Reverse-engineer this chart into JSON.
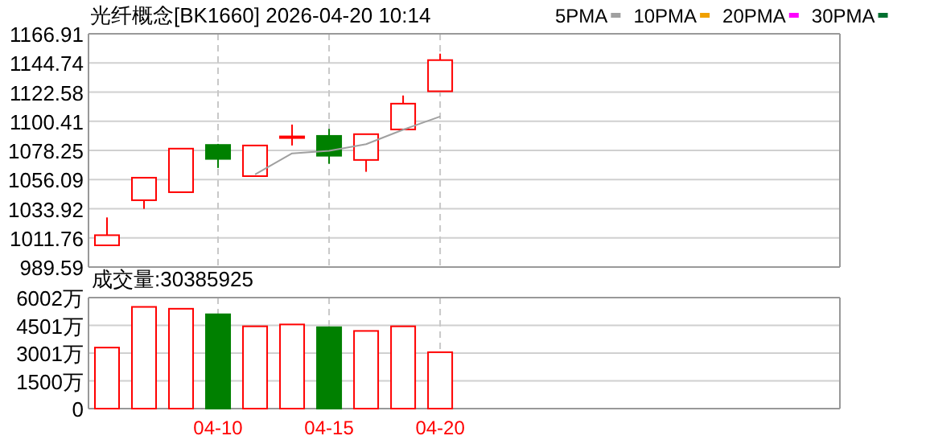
{
  "chart_data": [
    {
      "type": "candlestick",
      "title": "光纤概念[BK1660] 2026-04-20 10:14",
      "categories": [
        null,
        null,
        null,
        null,
        null,
        null,
        null,
        null,
        null,
        null
      ],
      "ohlc": [
        [
          1006.1,
          1027.3,
          1006.1,
          1013.8
        ],
        [
          1040.4,
          1057.5,
          1033.8,
          1057.5
        ],
        [
          1046.5,
          1079.6,
          1046.5,
          1079.6
        ],
        [
          1082.4,
          1083.2,
          1064.9,
          1071.8
        ],
        [
          1058.7,
          1082.0,
          1058.7,
          1082.0
        ],
        [
          1088.1,
          1097.9,
          1082.0,
          1088.9
        ],
        [
          1089.3,
          1094.6,
          1068.1,
          1074.2
        ],
        [
          1071.0,
          1090.6,
          1062.0,
          1090.6
        ],
        [
          1094.2,
          1120.0,
          1094.2,
          1113.8
        ],
        [
          1123.2,
          1151.8,
          1123.2,
          1146.9
        ]
      ],
      "colors": [
        "#ff0000",
        "#ff0000",
        "#ff0000",
        "#008000",
        "#ff0000",
        "#ff0000",
        "#008000",
        "#ff0000",
        "#ff0000",
        "#ff0000"
      ],
      "series": [
        {
          "name": "5PMA",
          "type": "line",
          "color": "#a0a0a0",
          "values": [
            null,
            null,
            null,
            null,
            1060,
            1076,
            1078,
            1083,
            1094,
            1104
          ]
        },
        {
          "name": "10PMA",
          "type": "line",
          "color": "#f0a000",
          "values": [
            null,
            null,
            null,
            null,
            null,
            null,
            null,
            null,
            null,
            null
          ]
        },
        {
          "name": "20PMA",
          "type": "line",
          "color": "#ff00ff",
          "values": [
            null,
            null,
            null,
            null,
            null,
            null,
            null,
            null,
            null,
            null
          ]
        },
        {
          "name": "30PMA",
          "type": "line",
          "color": "#007030",
          "values": [
            null,
            null,
            null,
            null,
            null,
            null,
            null,
            null,
            null,
            null
          ]
        }
      ],
      "ylim": [
        989.59,
        1166.91
      ],
      "yticks": [
        989.59,
        1011.76,
        1033.92,
        1056.09,
        1078.25,
        1100.41,
        1122.58,
        1144.74,
        1166.91
      ],
      "grid": true,
      "legend": "top right",
      "tick_labels": "y"
    },
    {
      "type": "bar",
      "title": "成交量:30385925",
      "categories": [
        null,
        null,
        null,
        "04-10",
        null,
        null,
        "04-15",
        null,
        null,
        "04-20"
      ],
      "values": [
        3300,
        5500,
        5400,
        5100,
        4450,
        4550,
        4400,
        4200,
        4450,
        3050
      ],
      "colors": [
        "#ff0000",
        "#ff0000",
        "#ff0000",
        "#008000",
        "#ff0000",
        "#ff0000",
        "#008000",
        "#ff0000",
        "#ff0000",
        "#ff0000"
      ],
      "ylim": [
        0,
        6002
      ],
      "yticks": [
        0,
        {
          "value": 1500,
          "label": "1500万"
        },
        {
          "value": 3001,
          "label": "3001万"
        },
        {
          "value": 4501,
          "label": "4501万"
        },
        {
          "value": 6002,
          "label": "6002万"
        }
      ],
      "grid": true
    }
  ]
}
